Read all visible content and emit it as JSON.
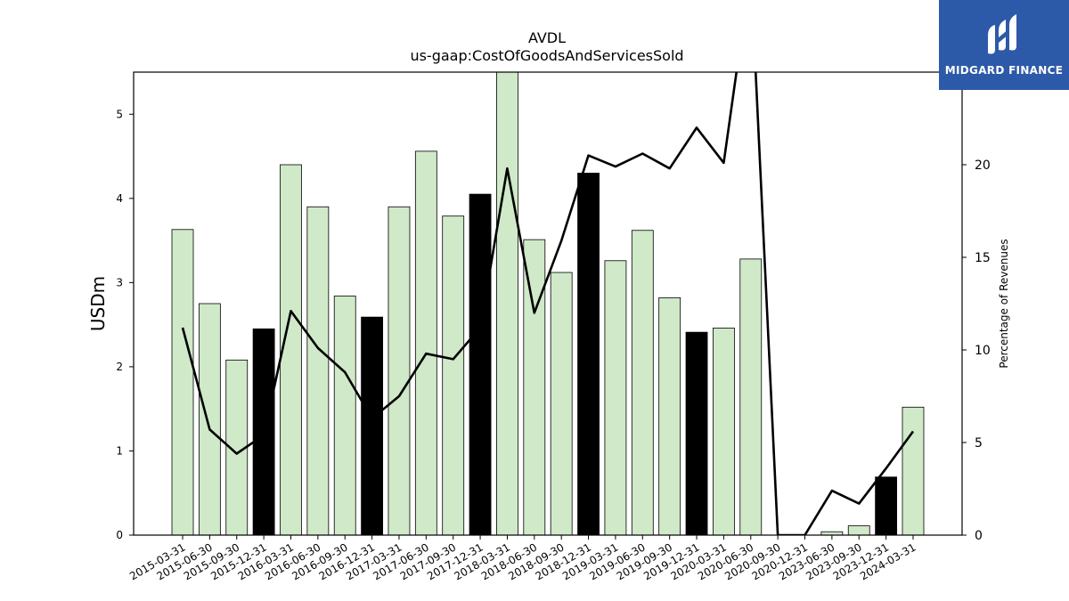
{
  "logo": {
    "text": "MIDGARD FINANCE",
    "color": "#2d5aa8"
  },
  "chart_data": {
    "type": "bar",
    "title": "AVDL",
    "subtitle": "us-gaap:CostOfGoodsAndServicesSold",
    "ylabel": "USDm",
    "ylabel_right": "Percentage of Revenues",
    "ylim": [
      0,
      5.5
    ],
    "ylim_right": [
      0,
      25.0
    ],
    "yticks": [
      0,
      1,
      2,
      3,
      4,
      5
    ],
    "yticks_right": [
      0,
      5,
      10,
      15,
      20,
      25
    ],
    "categories": [
      "2015-03-31",
      "2015-06-30",
      "2015-09-30",
      "2015-12-31",
      "2016-03-31",
      "2016-06-30",
      "2016-09-30",
      "2016-12-31",
      "2017-03-31",
      "2017-06-30",
      "2017-09-30",
      "2017-12-31",
      "2018-03-31",
      "2018-06-30",
      "2018-09-30",
      "2018-12-31",
      "2019-03-31",
      "2019-06-30",
      "2019-09-30",
      "2019-12-31",
      "2020-03-31",
      "2020-06-30",
      "2020-09-30",
      "2020-12-31",
      "2023-06-30",
      "2023-09-30",
      "2023-12-31",
      "2024-03-31"
    ],
    "series": [
      {
        "type": "bar",
        "values": [
          3.63,
          2.75,
          2.08,
          2.45,
          4.4,
          3.9,
          2.84,
          2.59,
          3.9,
          4.56,
          3.79,
          4.05,
          5.52,
          3.51,
          3.12,
          4.3,
          3.26,
          3.62,
          2.82,
          2.41,
          2.46,
          3.28,
          0,
          0,
          0.04,
          0.11,
          0.69,
          1.52
        ],
        "highlight": [
          false,
          false,
          false,
          true,
          false,
          false,
          false,
          true,
          false,
          false,
          false,
          true,
          false,
          false,
          false,
          true,
          false,
          false,
          false,
          true,
          false,
          false,
          false,
          false,
          false,
          false,
          true,
          false
        ],
        "color": "#cfe9c9",
        "highlight_color": "#000000"
      },
      {
        "type": "line",
        "axis": "right",
        "values": [
          11.2,
          5.7,
          4.4,
          5.4,
          12.1,
          10.1,
          8.8,
          6.3,
          7.5,
          9.8,
          9.5,
          11.2,
          19.8,
          12.0,
          15.9,
          20.5,
          19.9,
          20.6,
          19.8,
          22.0,
          20.1,
          30.5,
          0,
          0,
          2.4,
          1.7,
          3.6,
          5.6
        ],
        "color": "#000000"
      }
    ]
  }
}
